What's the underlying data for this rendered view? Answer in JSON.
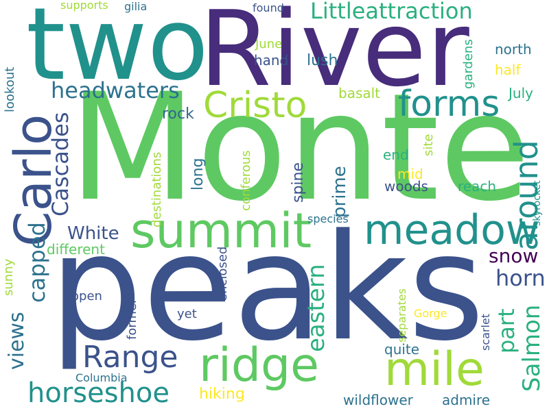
{
  "word_cloud": {
    "words": [
      {
        "text": "Monte",
        "color": "#5ec962"
      },
      {
        "text": "peaks",
        "color": "#3b528b"
      },
      {
        "text": "River",
        "color": "#472d7b"
      },
      {
        "text": "two",
        "color": "#21918c"
      },
      {
        "text": "Carlo",
        "color": "#3b528b"
      },
      {
        "text": "summit",
        "color": "#5ec962"
      },
      {
        "text": "meadow",
        "color": "#21918c"
      },
      {
        "text": "ridge",
        "color": "#5ec962"
      },
      {
        "text": "mile",
        "color": "#a0da39"
      },
      {
        "text": "Cristo",
        "color": "#a0da39"
      },
      {
        "text": "forms",
        "color": "#21918c"
      },
      {
        "text": "Range",
        "color": "#3b528b"
      },
      {
        "text": "around",
        "color": "#21918c"
      },
      {
        "text": "horseshoe",
        "color": "#21918c"
      },
      {
        "text": "Littleattraction",
        "color": "#2ab07f"
      },
      {
        "text": "headwaters",
        "color": "#2c728e"
      },
      {
        "text": "Cascades",
        "color": "#3b528b"
      },
      {
        "text": "eastern",
        "color": "#2ab07f"
      },
      {
        "text": "Salmon",
        "color": "#2ab07f"
      },
      {
        "text": "capped",
        "color": "#2c728e"
      },
      {
        "text": "views",
        "color": "#2c728e"
      },
      {
        "text": "horn",
        "color": "#3b528b"
      },
      {
        "text": "part",
        "color": "#2ab07f"
      },
      {
        "text": "White",
        "color": "#3b528b"
      },
      {
        "text": "snow",
        "color": "#440154"
      },
      {
        "text": "prime",
        "color": "#2c728e"
      },
      {
        "text": "hiking",
        "color": "#fde725"
      },
      {
        "text": "wildflower",
        "color": "#2c728e"
      },
      {
        "text": "admire",
        "color": "#2c728e"
      },
      {
        "text": "hand",
        "color": "#3b528b"
      },
      {
        "text": "lush",
        "color": "#2c728e"
      },
      {
        "text": "rock",
        "color": "#31688e"
      },
      {
        "text": "long",
        "color": "#2c728e"
      },
      {
        "text": "spine",
        "color": "#3b528b"
      },
      {
        "text": "woods",
        "color": "#3b528b"
      },
      {
        "text": "reach",
        "color": "#2ab07f"
      },
      {
        "text": "north",
        "color": "#2c728e"
      },
      {
        "text": "half",
        "color": "#fde725"
      },
      {
        "text": "July",
        "color": "#2ab07f"
      },
      {
        "text": "end",
        "color": "#2ab07f"
      },
      {
        "text": "mid",
        "color": "#fde725"
      },
      {
        "text": "June",
        "color": "#a0da39"
      },
      {
        "text": "basalt",
        "color": "#a0da39"
      },
      {
        "text": "gardens",
        "color": "#2ab07f"
      },
      {
        "text": "found",
        "color": "#3b528b"
      },
      {
        "text": "supports",
        "color": "#a0da39"
      },
      {
        "text": "gilia",
        "color": "#2c728e"
      },
      {
        "text": "lookout",
        "color": "#2c728e"
      },
      {
        "text": "destinations",
        "color": "#a0da39"
      },
      {
        "text": "conferous",
        "color": "#a0da39"
      },
      {
        "text": "site",
        "color": "#a0da39"
      },
      {
        "text": "skyrocket",
        "color": "#21918c"
      },
      {
        "text": "species",
        "color": "#2c728e"
      },
      {
        "text": "different",
        "color": "#5ec962"
      },
      {
        "text": "sunny",
        "color": "#a0da39"
      },
      {
        "text": "open",
        "color": "#3b528b"
      },
      {
        "text": "enclosed",
        "color": "#3b528b"
      },
      {
        "text": "former",
        "color": "#3b528b"
      },
      {
        "text": "yet",
        "color": "#3b528b"
      },
      {
        "text": "separates",
        "color": "#a0da39"
      },
      {
        "text": "Gorge",
        "color": "#fde725"
      },
      {
        "text": "scarlet",
        "color": "#3b528b"
      },
      {
        "text": "quite",
        "color": "#2c728e"
      },
      {
        "text": "Columbia",
        "color": "#2c728e"
      }
    ]
  }
}
